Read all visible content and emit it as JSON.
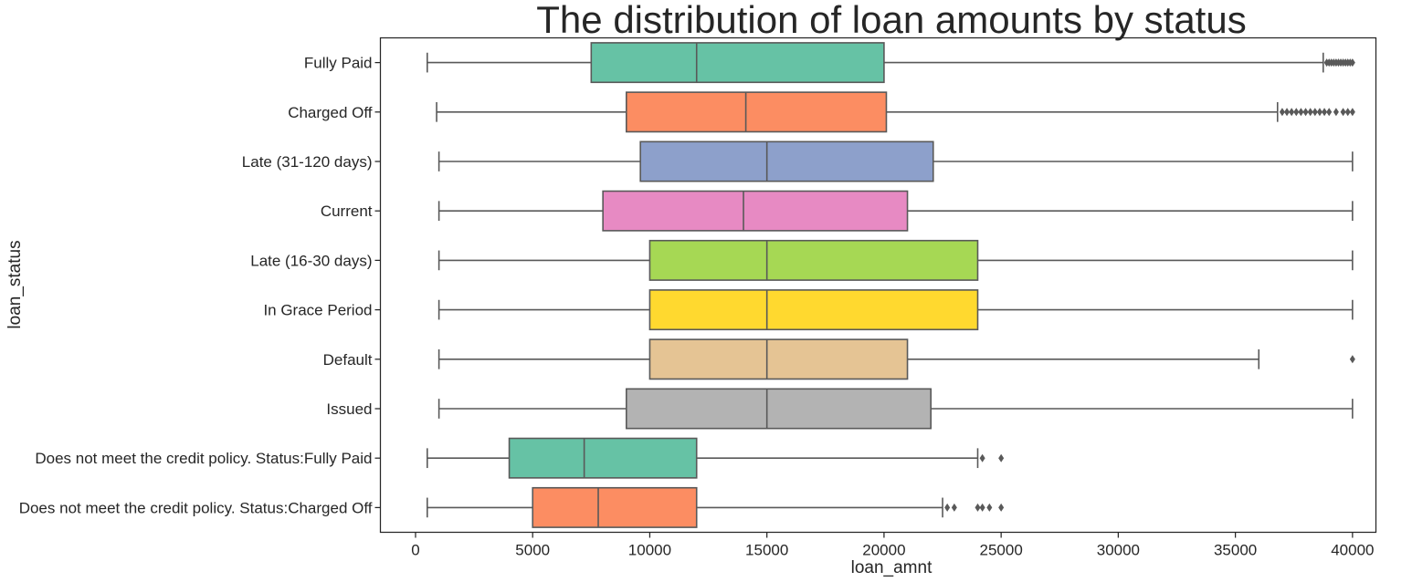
{
  "chart_data": {
    "type": "boxplot",
    "orientation": "horizontal",
    "title": "The distribution of loan amounts by status",
    "xlabel": "loan_amnt",
    "ylabel": "loan_status",
    "xlim": [
      -1500,
      41000
    ],
    "xticks": [
      0,
      5000,
      10000,
      15000,
      20000,
      25000,
      30000,
      35000,
      40000
    ],
    "grid": false,
    "legend": "none",
    "categories": [
      "Fully Paid",
      "Charged Off",
      "Late (31-120 days)",
      "Current",
      "Late (16-30 days)",
      "In Grace Period",
      "Default",
      "Issued",
      "Does not meet the credit policy. Status:Fully Paid",
      "Does not meet the credit policy. Status:Charged Off"
    ],
    "boxes": [
      {
        "category": "Fully Paid",
        "whisker_low": 500,
        "q1": 7500,
        "median": 12000,
        "q3": 20000,
        "whisker_high": 38750,
        "outliers": [
          38900,
          39000,
          39100,
          39200,
          39300,
          39400,
          39500,
          39600,
          39700,
          39800,
          39900,
          40000
        ],
        "color": "#66c2a5"
      },
      {
        "category": "Charged Off",
        "whisker_low": 900,
        "q1": 9000,
        "median": 14100,
        "q3": 20100,
        "whisker_high": 36800,
        "outliers": [
          37000,
          37200,
          37400,
          37600,
          37800,
          38000,
          38200,
          38400,
          38600,
          38800,
          39000,
          39300,
          39600,
          39800,
          40000
        ],
        "color": "#fc8d62"
      },
      {
        "category": "Late (31-120 days)",
        "whisker_low": 1000,
        "q1": 9600,
        "median": 15000,
        "q3": 22100,
        "whisker_high": 40000,
        "outliers": [],
        "color": "#8da0cb"
      },
      {
        "category": "Current",
        "whisker_low": 1000,
        "q1": 8000,
        "median": 14000,
        "q3": 21000,
        "whisker_high": 40000,
        "outliers": [],
        "color": "#e78ac3"
      },
      {
        "category": "Late (16-30 days)",
        "whisker_low": 1000,
        "q1": 10000,
        "median": 15000,
        "q3": 24000,
        "whisker_high": 40000,
        "outliers": [],
        "color": "#a6d854"
      },
      {
        "category": "In Grace Period",
        "whisker_low": 1000,
        "q1": 10000,
        "median": 15000,
        "q3": 24000,
        "whisker_high": 40000,
        "outliers": [],
        "color": "#ffd92f"
      },
      {
        "category": "Default",
        "whisker_low": 1000,
        "q1": 10000,
        "median": 15000,
        "q3": 21000,
        "whisker_high": 36000,
        "outliers": [
          40000
        ],
        "color": "#e5c494"
      },
      {
        "category": "Issued",
        "whisker_low": 1000,
        "q1": 9000,
        "median": 15000,
        "q3": 22000,
        "whisker_high": 40000,
        "outliers": [],
        "color": "#b3b3b3"
      },
      {
        "category": "Does not meet the credit policy. Status:Fully Paid",
        "whisker_low": 500,
        "q1": 4000,
        "median": 7200,
        "q3": 12000,
        "whisker_high": 24000,
        "outliers": [
          24200,
          25000
        ],
        "color": "#66c2a5"
      },
      {
        "category": "Does not meet the credit policy. Status:Charged Off",
        "whisker_low": 500,
        "q1": 5000,
        "median": 7800,
        "q3": 12000,
        "whisker_high": 22500,
        "outliers": [
          22700,
          23000,
          24000,
          24200,
          24500,
          25000
        ],
        "color": "#fc8d62"
      }
    ]
  }
}
